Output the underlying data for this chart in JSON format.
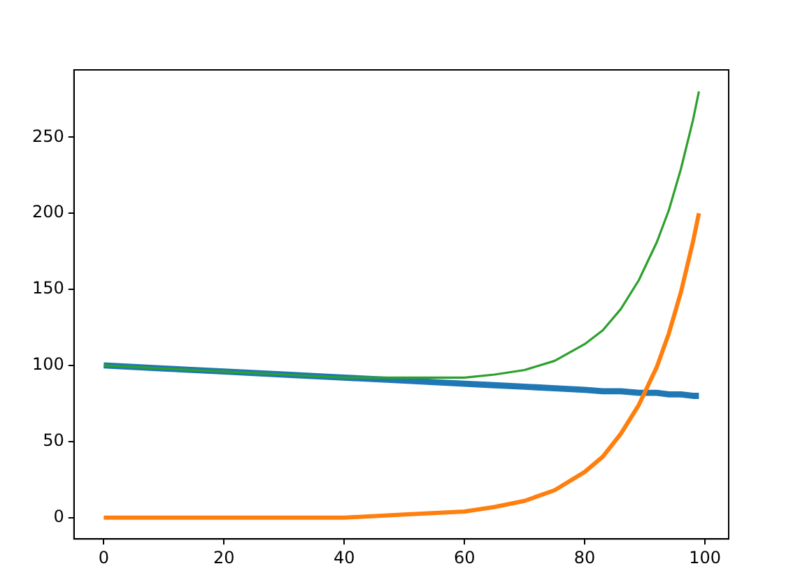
{
  "chart_data": {
    "type": "line",
    "x": [
      0,
      10,
      20,
      30,
      40,
      50,
      60,
      65,
      70,
      75,
      80,
      83,
      86,
      89,
      92,
      94,
      96,
      98,
      99
    ],
    "series": [
      {
        "color": "#1f77b4",
        "values": [
          100,
          98,
          96,
          94,
          92,
          90,
          88,
          87,
          86,
          85,
          84,
          83,
          83,
          82,
          82,
          81,
          81,
          80,
          80
        ]
      },
      {
        "color": "#ff7f0e",
        "values": [
          0,
          0,
          0,
          0,
          0,
          2,
          4,
          7,
          11,
          18,
          30,
          40,
          55,
          74,
          99,
          121,
          148,
          181,
          200
        ]
      },
      {
        "color": "#2ca02c",
        "values": [
          100,
          98,
          96,
          94,
          92,
          92,
          92,
          94,
          97,
          103,
          114,
          123,
          137,
          156,
          181,
          202,
          229,
          261,
          280
        ]
      }
    ],
    "xlim": [
      -4.95,
      103.95
    ],
    "xticks": [
      0,
      20,
      40,
      60,
      80,
      100
    ],
    "ylim": [
      -14,
      294.2
    ],
    "yticks": [
      0,
      50,
      100,
      150,
      200,
      250
    ],
    "grid": false,
    "legend": false,
    "marker": "none",
    "line_style": "solid"
  }
}
